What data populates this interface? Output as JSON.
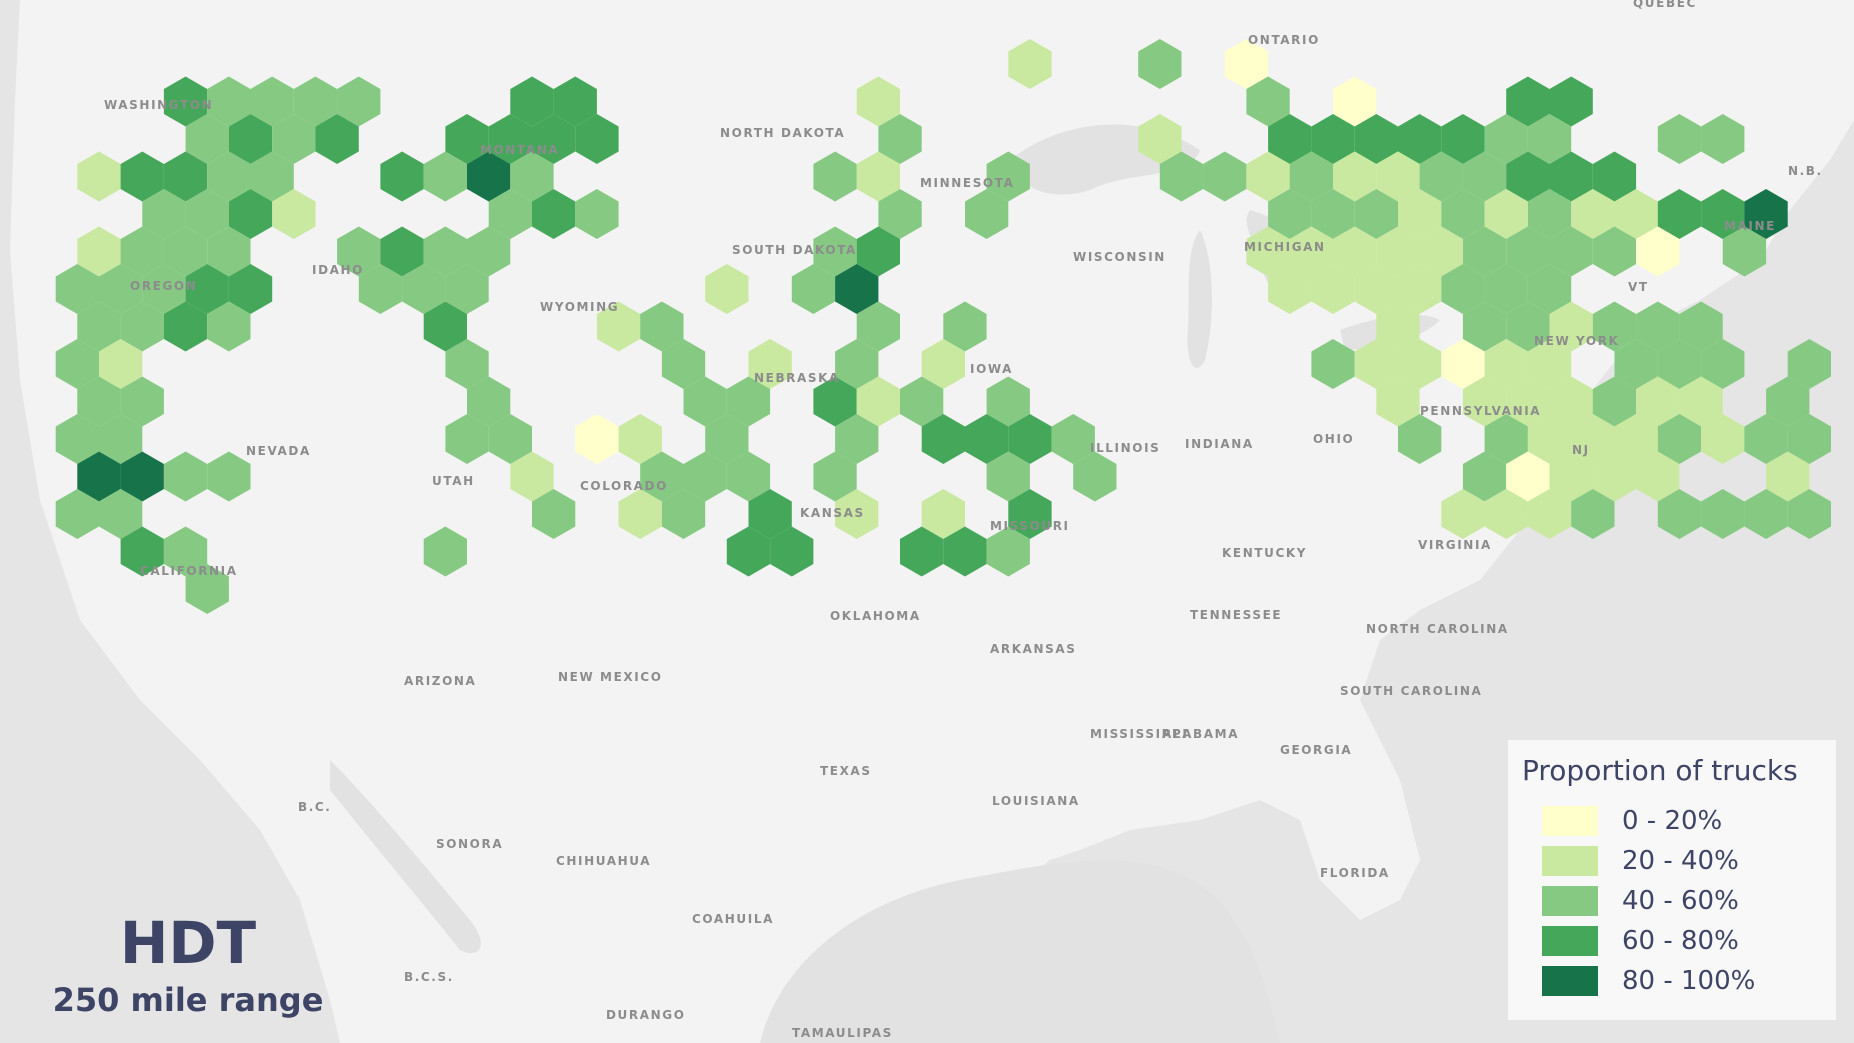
{
  "title": "HDT",
  "subtitle": "250 mile range",
  "legend": {
    "title": "Proportion of trucks",
    "bins": [
      {
        "label": "0 - 20%",
        "color": "#ffffcc"
      },
      {
        "label": "20 - 40%",
        "color": "#c9e8a0"
      },
      {
        "label": "40 - 60%",
        "color": "#86c982"
      },
      {
        "label": "60 - 80%",
        "color": "#45a75a"
      },
      {
        "label": "80 - 100%",
        "color": "#17744a"
      }
    ]
  },
  "place_labels": [
    {
      "id": "ontario",
      "text": "ONTARIO"
    },
    {
      "id": "quebec",
      "text": "QUÉBEC"
    },
    {
      "id": "washington",
      "text": "WASHINGTON"
    },
    {
      "id": "montana",
      "text": "MONTANA"
    },
    {
      "id": "north-dakota",
      "text": "NORTH DAKOTA"
    },
    {
      "id": "minnesota",
      "text": "MINNESOTA"
    },
    {
      "id": "oregon",
      "text": "OREGON"
    },
    {
      "id": "idaho",
      "text": "IDAHO"
    },
    {
      "id": "wyoming",
      "text": "WYOMING"
    },
    {
      "id": "south-dakota",
      "text": "SOUTH DAKOTA"
    },
    {
      "id": "wisconsin",
      "text": "WISCONSIN"
    },
    {
      "id": "michigan",
      "text": "MICHIGAN"
    },
    {
      "id": "nebraska",
      "text": "NEBRASKA"
    },
    {
      "id": "iowa",
      "text": "IOWA"
    },
    {
      "id": "nevada",
      "text": "NEVADA"
    },
    {
      "id": "utah",
      "text": "UTAH"
    },
    {
      "id": "colorado",
      "text": "COLORADO"
    },
    {
      "id": "kansas",
      "text": "KANSAS"
    },
    {
      "id": "missouri",
      "text": "MISSOURI"
    },
    {
      "id": "illinois",
      "text": "ILLINOIS"
    },
    {
      "id": "indiana",
      "text": "INDIANA"
    },
    {
      "id": "ohio",
      "text": "OHIO"
    },
    {
      "id": "kentucky",
      "text": "KENTUCKY"
    },
    {
      "id": "california",
      "text": "CALIFORNIA"
    },
    {
      "id": "arizona",
      "text": "ARIZONA"
    },
    {
      "id": "new-mexico",
      "text": "NEW MEXICO"
    },
    {
      "id": "oklahoma",
      "text": "OKLAHOMA"
    },
    {
      "id": "arkansas",
      "text": "ARKANSAS"
    },
    {
      "id": "tennessee",
      "text": "TENNESSEE"
    },
    {
      "id": "north-carolina",
      "text": "NORTH CAROLINA"
    },
    {
      "id": "virginia",
      "text": "VIRGINIA"
    },
    {
      "id": "texas",
      "text": "TEXAS"
    },
    {
      "id": "louisiana",
      "text": "LOUISIANA"
    },
    {
      "id": "mississippi",
      "text": "MISSISSIPPI"
    },
    {
      "id": "alabama",
      "text": "ALABAMA"
    },
    {
      "id": "georgia",
      "text": "GEORGIA"
    },
    {
      "id": "south-carolina",
      "text": "SOUTH CAROLINA"
    },
    {
      "id": "florida",
      "text": "FLORIDA"
    },
    {
      "id": "new-york",
      "text": "NEW YORK"
    },
    {
      "id": "pennsylvania",
      "text": "PENNSYLVANIA"
    },
    {
      "id": "vermont",
      "text": "VT"
    },
    {
      "id": "maine",
      "text": "MAINE"
    },
    {
      "id": "new-jersey",
      "text": "NJ"
    },
    {
      "id": "new-brunswick",
      "text": "N.B."
    },
    {
      "id": "baja-california",
      "text": "B.C."
    },
    {
      "id": "sonora",
      "text": "SONORA"
    },
    {
      "id": "chihuahua",
      "text": "CHIHUAHUA"
    },
    {
      "id": "coahuila",
      "text": "COAHUILA"
    },
    {
      "id": "baja-california-sur",
      "text": "B.C.S."
    },
    {
      "id": "durango",
      "text": "DURANGO"
    },
    {
      "id": "tamaulipas",
      "text": "TAMAULIPAS"
    }
  ],
  "hex_grid": {
    "bin_codes": "0 = 0-20%, 1 = 20-40%, 2 = 40-60%, 3 = 60-80%, 4 = 80-100%, . = no data",
    "rows": [
      ".......................1..2.0................................",
      "..32222...33......1........2.0...33............................",
      "...2323..3333......2.....1..3333322..22...................",
      ".13322..3242......21..2...22121122333.....................",
      "..2231....232......2.2......222121211334.................",
      ".1222..2322.......23........1111122220.2..........1......",
      ".22233..222.....1.24.........1111222.....................",
      ".2232....3...12....2.2.........1.221222...2.......12....",
      ".21.......2....2.1.2.1........211011.222.222...121321..",
      ".22.......2....22.312.2........1.111211.22.2......12222",
      ".22.......22.01.2..2.3332.......2.2111212221.2...1222",
      ".4422......1..222.2...2.2........20111..12.22..2121222.",
      ".22.........2.12.3.1.1.3.........1112.222222.2211222..",
      "..32.....2......33..332.....................1..",
      "...2.........................................",
      "........................................",
      "..........................................",
      "......................",
      "......................",
      "......................",
      "......................",
      "......................",
      "......................",
      "......................",
      "......................",
      "......................",
      "......................",
      "......................",
      "......................",
      "......................"
    ]
  }
}
